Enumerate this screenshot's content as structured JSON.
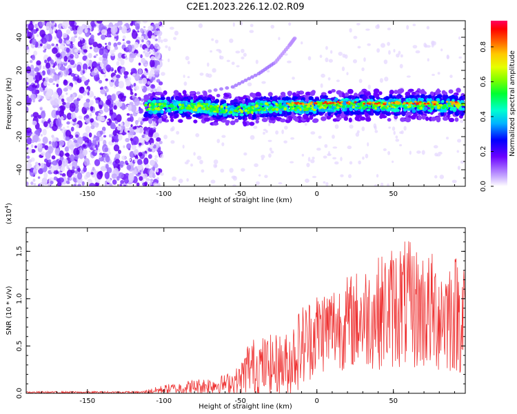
{
  "title": "C2E1.2023.226.12.02.R09",
  "chart_data": [
    {
      "type": "heatmap",
      "xlabel": "Height of straight line (km)",
      "ylabel": "Frequency (Hz)",
      "xlim": [
        -190,
        97
      ],
      "ylim": [
        -50,
        50
      ],
      "xticks": [
        -150,
        -100,
        -50,
        0,
        50
      ],
      "yticks": [
        -40,
        -20,
        0,
        20,
        40
      ],
      "colorbar": {
        "label": "Normalized spectral amplitude",
        "range": [
          0,
          0.95
        ],
        "ticks": [
          0.0,
          0.2,
          0.4,
          0.6,
          0.8
        ]
      },
      "features": {
        "noise_region_x": [
          -190,
          -110
        ],
        "signal_band_center_hz": 0,
        "signal_band_x": [
          -112,
          97
        ],
        "faint_rising_trace": [
          [
            -85,
            5
          ],
          [
            -55,
            10
          ],
          [
            -38,
            18
          ],
          [
            -27,
            25
          ],
          [
            -18,
            35
          ],
          [
            -14,
            40
          ]
        ]
      }
    },
    {
      "type": "line",
      "xlabel": "Height of straight line (km)",
      "ylabel": "SNR (10 * v/v)",
      "yscale_label": "(x10",
      "yscale_exp": "4",
      "yscale_close": ")",
      "xlim": [
        -190,
        97
      ],
      "ylim": [
        0,
        1.75
      ],
      "xticks": [
        -150,
        -100,
        -50,
        0,
        50
      ],
      "yticks": [
        "0.0",
        "0.5",
        "1.0",
        "1.5"
      ],
      "series_color": "#ee3030",
      "envelope": [
        {
          "x": -190,
          "mean": 0.01,
          "amp": 0.01
        },
        {
          "x": -115,
          "mean": 0.01,
          "amp": 0.012
        },
        {
          "x": -100,
          "mean": 0.04,
          "amp": 0.05
        },
        {
          "x": -80,
          "mean": 0.07,
          "amp": 0.08
        },
        {
          "x": -60,
          "mean": 0.1,
          "amp": 0.1
        },
        {
          "x": -50,
          "mean": 0.15,
          "amp": 0.15
        },
        {
          "x": -45,
          "mean": 0.28,
          "amp": 0.3
        },
        {
          "x": -20,
          "mean": 0.3,
          "amp": 0.35
        },
        {
          "x": -10,
          "mean": 0.5,
          "amp": 0.45
        },
        {
          "x": 0,
          "mean": 0.65,
          "amp": 0.45
        },
        {
          "x": 20,
          "mean": 0.75,
          "amp": 0.5
        },
        {
          "x": 40,
          "mean": 0.85,
          "amp": 0.6
        },
        {
          "x": 55,
          "mean": 0.95,
          "amp": 0.7
        },
        {
          "x": 75,
          "mean": 0.85,
          "amp": 0.65
        },
        {
          "x": 97,
          "mean": 0.85,
          "amp": 0.65
        }
      ]
    }
  ]
}
